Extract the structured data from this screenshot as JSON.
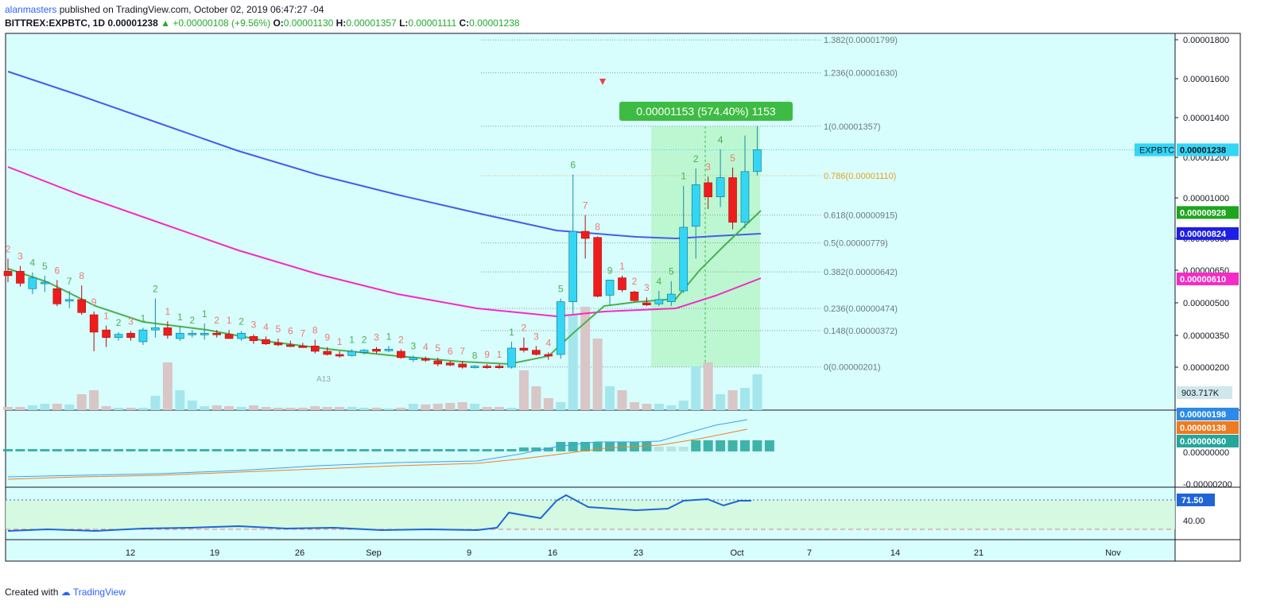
{
  "header": {
    "publisher": "alanmasters",
    "published_text": "published on TradingView.com, October 02, 2019 06:47:27 -04",
    "symbol": "BITTREX:EXPBTC, 1D",
    "last": "0.00001238",
    "change": "▲ +0.00000108 (+9.56%)",
    "o_label": "O:",
    "o": "0.00001130",
    "h_label": "H:",
    "h": "0.00001357",
    "l_label": "L:",
    "l": "0.00001111",
    "c_label": "C:",
    "c": "0.00001238"
  },
  "footer": {
    "created_with": "Created with",
    "brand": "TradingView"
  },
  "colors": {
    "background": "#d7fdfd",
    "up": "#34d6f5",
    "down": "#ee1c1c",
    "ema_short": "#4caf50",
    "ema_mid": "#4a5ce8",
    "ema_long": "#f42bc4",
    "fib_zone": "#b5f5c7",
    "label_green": "#3dbb43"
  },
  "chart_data": [
    {
      "type": "candlestick",
      "symbol": "EXPBTC",
      "ylim": [
        6e-07,
        1.9e-06
      ],
      "y_ticks": [
        "0.00001800",
        "0.00001600",
        "0.00001400",
        "0.00001200",
        "0.00001000",
        "0.00000800",
        "0.00000650",
        "0.00000500",
        "0.00000350",
        "0.00000200"
      ],
      "x_ticks": [
        "12",
        "19",
        "26",
        "Sep",
        "9",
        "16",
        "23",
        "Oct",
        "7",
        "14",
        "21",
        "Nov"
      ],
      "candles": [
        {
          "o": 6.45,
          "h": 7.05,
          "l": 5.95,
          "c": 6.25
        },
        {
          "o": 6.45,
          "h": 6.7,
          "l": 5.75,
          "c": 5.9
        },
        {
          "o": 5.65,
          "h": 6.4,
          "l": 5.4,
          "c": 6.15
        },
        {
          "o": 5.95,
          "h": 6.25,
          "l": 5.5,
          "c": 5.95
        },
        {
          "o": 5.65,
          "h": 6.05,
          "l": 4.85,
          "c": 4.95
        },
        {
          "o": 5.15,
          "h": 5.55,
          "l": 4.75,
          "c": 5.15
        },
        {
          "o": 5.15,
          "h": 5.8,
          "l": 4.45,
          "c": 4.55
        },
        {
          "o": 4.45,
          "h": 4.6,
          "l": 2.75,
          "c": 3.65
        },
        {
          "o": 3.75,
          "h": 3.95,
          "l": 2.95,
          "c": 3.4
        },
        {
          "o": 3.4,
          "h": 3.65,
          "l": 3.25,
          "c": 3.55
        },
        {
          "o": 3.6,
          "h": 3.7,
          "l": 3.25,
          "c": 3.4
        },
        {
          "o": 3.2,
          "h": 3.85,
          "l": 3.05,
          "c": 3.75
        },
        {
          "o": 3.75,
          "h": 5.2,
          "l": 3.4,
          "c": 3.85
        },
        {
          "o": 3.85,
          "h": 4.15,
          "l": 3.35,
          "c": 3.5
        },
        {
          "o": 3.35,
          "h": 3.9,
          "l": 3.25,
          "c": 3.6
        },
        {
          "o": 3.55,
          "h": 3.75,
          "l": 3.4,
          "c": 3.6
        },
        {
          "o": 3.6,
          "h": 4.05,
          "l": 3.3,
          "c": 3.6
        },
        {
          "o": 3.6,
          "h": 3.75,
          "l": 3.4,
          "c": 3.55
        },
        {
          "o": 3.55,
          "h": 3.75,
          "l": 3.35,
          "c": 3.35
        },
        {
          "o": 3.35,
          "h": 3.7,
          "l": 3.25,
          "c": 3.6
        },
        {
          "o": 3.45,
          "h": 3.55,
          "l": 3.1,
          "c": 3.25
        },
        {
          "o": 3.3,
          "h": 3.45,
          "l": 3.05,
          "c": 3.1
        },
        {
          "o": 3.15,
          "h": 3.35,
          "l": 3.0,
          "c": 3.05
        },
        {
          "o": 3.05,
          "h": 3.25,
          "l": 2.95,
          "c": 3.0
        },
        {
          "o": 3.0,
          "h": 3.15,
          "l": 2.95,
          "c": 2.95
        },
        {
          "o": 3.0,
          "h": 3.3,
          "l": 2.65,
          "c": 2.75
        },
        {
          "o": 2.75,
          "h": 2.95,
          "l": 2.55,
          "c": 2.6
        },
        {
          "o": 2.6,
          "h": 2.75,
          "l": 2.45,
          "c": 2.55
        },
        {
          "o": 2.55,
          "h": 2.85,
          "l": 2.5,
          "c": 2.75
        },
        {
          "o": 2.7,
          "h": 2.85,
          "l": 2.6,
          "c": 2.8
        },
        {
          "o": 2.85,
          "h": 2.95,
          "l": 2.65,
          "c": 2.75
        },
        {
          "o": 2.8,
          "h": 3.0,
          "l": 2.7,
          "c": 2.85
        },
        {
          "o": 2.75,
          "h": 2.85,
          "l": 2.4,
          "c": 2.45
        },
        {
          "o": 2.35,
          "h": 2.55,
          "l": 2.25,
          "c": 2.45
        },
        {
          "o": 2.4,
          "h": 2.5,
          "l": 2.25,
          "c": 2.35
        },
        {
          "o": 2.3,
          "h": 2.45,
          "l": 2.05,
          "c": 2.15
        },
        {
          "o": 2.2,
          "h": 2.3,
          "l": 2.05,
          "c": 2.1
        },
        {
          "o": 2.15,
          "h": 2.3,
          "l": 1.95,
          "c": 2.0
        },
        {
          "o": 2.0,
          "h": 2.1,
          "l": 1.95,
          "c": 2.05
        },
        {
          "o": 2.05,
          "h": 2.15,
          "l": 1.95,
          "c": 2.0
        },
        {
          "o": 2.05,
          "h": 2.15,
          "l": 1.95,
          "c": 2.0
        },
        {
          "o": 2.0,
          "h": 3.2,
          "l": 1.95,
          "c": 2.9
        },
        {
          "o": 2.9,
          "h": 3.4,
          "l": 2.7,
          "c": 2.8
        },
        {
          "o": 2.8,
          "h": 3.0,
          "l": 2.55,
          "c": 2.6
        },
        {
          "o": 2.6,
          "h": 2.7,
          "l": 2.35,
          "c": 2.55
        },
        {
          "o": 2.6,
          "h": 5.2,
          "l": 2.4,
          "c": 5.05
        },
        {
          "o": 5.05,
          "h": 11.15,
          "l": 4.5,
          "c": 8.35
        },
        {
          "o": 8.35,
          "h": 9.15,
          "l": 7.05,
          "c": 8.0
        },
        {
          "o": 8.05,
          "h": 8.1,
          "l": 5.25,
          "c": 5.3
        },
        {
          "o": 5.35,
          "h": 6.05,
          "l": 4.9,
          "c": 6.05
        },
        {
          "o": 6.15,
          "h": 6.25,
          "l": 5.5,
          "c": 5.6
        },
        {
          "o": 5.5,
          "h": 5.55,
          "l": 5.05,
          "c": 5.1
        },
        {
          "o": 5.0,
          "h": 5.25,
          "l": 4.85,
          "c": 4.9
        },
        {
          "o": 4.95,
          "h": 5.55,
          "l": 4.85,
          "c": 5.15
        },
        {
          "o": 5.05,
          "h": 6.0,
          "l": 4.85,
          "c": 5.4
        },
        {
          "o": 5.55,
          "h": 10.6,
          "l": 5.45,
          "c": 8.55
        },
        {
          "o": 8.6,
          "h": 11.45,
          "l": 7.05,
          "c": 10.65
        },
        {
          "o": 10.75,
          "h": 11.05,
          "l": 9.45,
          "c": 10.05
        },
        {
          "o": 10.05,
          "h": 12.4,
          "l": 9.55,
          "c": 11.0
        },
        {
          "o": 11.0,
          "h": 11.5,
          "l": 8.45,
          "c": 8.8
        },
        {
          "o": 8.8,
          "h": 13.1,
          "l": 8.5,
          "c": 11.3
        },
        {
          "o": 11.3,
          "h": 13.57,
          "l": 11.11,
          "c": 12.38
        }
      ],
      "fib_levels": [
        {
          "label": "1.382(0.00001799)",
          "value": 17.99
        },
        {
          "label": "1.236(0.00001630)",
          "value": 16.3
        },
        {
          "label": "1(0.00001357)",
          "value": 13.57
        },
        {
          "label": "0.786(0.00001110)",
          "value": 11.1
        },
        {
          "label": "0.618(0.00000915)",
          "value": 9.15
        },
        {
          "label": "0.5(0.00000779)",
          "value": 7.79
        },
        {
          "label": "0.382(0.00000642)",
          "value": 6.42
        },
        {
          "label": "0.236(0.00000474)",
          "value": 4.74
        },
        {
          "label": "0.148(0.00000372)",
          "value": 3.72
        },
        {
          "label": "0(0.00000201)",
          "value": 2.01
        }
      ],
      "measure_label": "0.00001153 (574.40%) 1153",
      "price_labels": [
        {
          "text": "EXPBTC",
          "value": "0.00001238"
        },
        {
          "value": "0.00000928"
        },
        {
          "value": "0.00000824"
        },
        {
          "value": "0.00000610"
        }
      ],
      "volume_label": "903.717K",
      "annotations": {
        "sequential_top": [
          "2",
          "3",
          "4",
          "5",
          "6",
          "7",
          "8",
          "9",
          "1",
          "2",
          "3",
          "1",
          "2",
          "1",
          "1",
          "2",
          "1",
          "2",
          "1",
          "2",
          "3",
          "4",
          "5",
          "6",
          "7",
          "8",
          "9",
          "1",
          "1",
          "2",
          "3",
          "1",
          "2",
          "3",
          "4",
          "5",
          "6",
          "7",
          "8",
          "9",
          "1",
          "1",
          "2",
          "3",
          "4",
          "5",
          "6",
          "7",
          "8",
          "9",
          "1",
          "2",
          "3",
          "4",
          "5",
          "1",
          "2",
          "3",
          "4",
          "5"
        ],
        "a13_label": "A13"
      }
    },
    {
      "type": "macd",
      "labels": [
        "0.00000198",
        "0.00000138",
        "0.00000060"
      ],
      "y_ticks": [
        "0.00000000",
        "-0.00000200"
      ]
    },
    {
      "type": "line",
      "name": "RSI",
      "value_label": "71.50",
      "y_ticks": [
        "40.00"
      ]
    }
  ]
}
